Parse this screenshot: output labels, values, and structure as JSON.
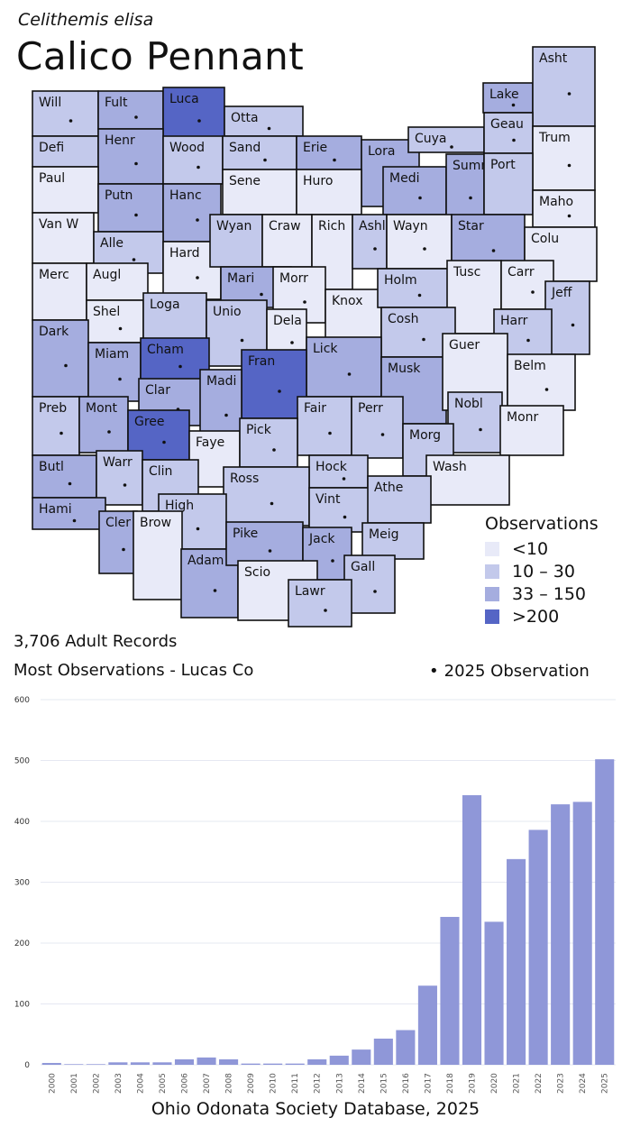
{
  "header": {
    "scientific_name": "Celithemis elisa",
    "common_name": "Calico Pennant"
  },
  "legend": {
    "title": "Observations",
    "items": [
      {
        "label": "<10",
        "color": "#e8eaf8"
      },
      {
        "label": "10 – 30",
        "color": "#c3c9eb"
      },
      {
        "label": "33 – 150",
        "color": "#a5addf"
      },
      {
        "label": ">200",
        "color": "#5565c5"
      }
    ],
    "observation_2025_label": "2025  Observation"
  },
  "summary": {
    "records": "3,706 Adult Records",
    "most": "Most Observations - Lucas Co"
  },
  "map": {
    "counties": [
      {
        "name": "Will",
        "level": 1,
        "obs2025": true
      },
      {
        "name": "Fult",
        "level": 2,
        "obs2025": true
      },
      {
        "name": "Luca",
        "level": 3,
        "obs2025": true
      },
      {
        "name": "Otta",
        "level": 1,
        "obs2025": true
      },
      {
        "name": "Lake",
        "level": 2,
        "obs2025": true
      },
      {
        "name": "Asht",
        "level": 1,
        "obs2025": true
      },
      {
        "name": "Defi",
        "level": 1,
        "obs2025": false
      },
      {
        "name": "Henr",
        "level": 2,
        "obs2025": true
      },
      {
        "name": "Wood",
        "level": 1,
        "obs2025": true
      },
      {
        "name": "Sand",
        "level": 1,
        "obs2025": true
      },
      {
        "name": "Erie",
        "level": 2,
        "obs2025": true
      },
      {
        "name": "Lora",
        "level": 2,
        "obs2025": true
      },
      {
        "name": "Cuya",
        "level": 1,
        "obs2025": true
      },
      {
        "name": "Geau",
        "level": 1,
        "obs2025": true
      },
      {
        "name": "Trum",
        "level": 0,
        "obs2025": true
      },
      {
        "name": "Paul",
        "level": 0,
        "obs2025": false
      },
      {
        "name": "Putn",
        "level": 2,
        "obs2025": true
      },
      {
        "name": "Hanc",
        "level": 2,
        "obs2025": true
      },
      {
        "name": "Sene",
        "level": 0,
        "obs2025": false
      },
      {
        "name": "Huro",
        "level": 0,
        "obs2025": false
      },
      {
        "name": "Medi",
        "level": 2,
        "obs2025": true
      },
      {
        "name": "Summ",
        "level": 2,
        "obs2025": true
      },
      {
        "name": "Port",
        "level": 1,
        "obs2025": false
      },
      {
        "name": "Maho",
        "level": 0,
        "obs2025": true
      },
      {
        "name": "Van W",
        "level": 0,
        "obs2025": false
      },
      {
        "name": "Alle",
        "level": 1,
        "obs2025": true
      },
      {
        "name": "Hard",
        "level": 0,
        "obs2025": true
      },
      {
        "name": "Wyan",
        "level": 1,
        "obs2025": false
      },
      {
        "name": "Craw",
        "level": 0,
        "obs2025": false
      },
      {
        "name": "Rich",
        "level": 0,
        "obs2025": false
      },
      {
        "name": "Ashl",
        "level": 1,
        "obs2025": true
      },
      {
        "name": "Wayn",
        "level": 0,
        "obs2025": true
      },
      {
        "name": "Star",
        "level": 2,
        "obs2025": true
      },
      {
        "name": "Colu",
        "level": 0,
        "obs2025": false
      },
      {
        "name": "Merc",
        "level": 0,
        "obs2025": false
      },
      {
        "name": "Augl",
        "level": 0,
        "obs2025": false
      },
      {
        "name": "Mari",
        "level": 2,
        "obs2025": true
      },
      {
        "name": "Morr",
        "level": 0,
        "obs2025": true
      },
      {
        "name": "Knox",
        "level": 0,
        "obs2025": false
      },
      {
        "name": "Holm",
        "level": 1,
        "obs2025": true
      },
      {
        "name": "Tusc",
        "level": 0,
        "obs2025": false
      },
      {
        "name": "Carr",
        "level": 0,
        "obs2025": true
      },
      {
        "name": "Jeff",
        "level": 1,
        "obs2025": true
      },
      {
        "name": "Shel",
        "level": 0,
        "obs2025": true
      },
      {
        "name": "Loga",
        "level": 1,
        "obs2025": false
      },
      {
        "name": "Unio",
        "level": 1,
        "obs2025": true
      },
      {
        "name": "Dela",
        "level": 0,
        "obs2025": true
      },
      {
        "name": "Cosh",
        "level": 1,
        "obs2025": true
      },
      {
        "name": "Harr",
        "level": 1,
        "obs2025": true
      },
      {
        "name": "Dark",
        "level": 2,
        "obs2025": true
      },
      {
        "name": "Miam",
        "level": 2,
        "obs2025": true
      },
      {
        "name": "Cham",
        "level": 3,
        "obs2025": true
      },
      {
        "name": "Lick",
        "level": 2,
        "obs2025": true
      },
      {
        "name": "Musk",
        "level": 2,
        "obs2025": false
      },
      {
        "name": "Guer",
        "level": 0,
        "obs2025": false
      },
      {
        "name": "Belm",
        "level": 0,
        "obs2025": true
      },
      {
        "name": "Clar",
        "level": 2,
        "obs2025": true
      },
      {
        "name": "Fran",
        "level": 3,
        "obs2025": true
      },
      {
        "name": "Madi",
        "level": 2,
        "obs2025": true
      },
      {
        "name": "Preb",
        "level": 1,
        "obs2025": true
      },
      {
        "name": "Mont",
        "level": 2,
        "obs2025": true
      },
      {
        "name": "Gree",
        "level": 3,
        "obs2025": true
      },
      {
        "name": "Fair",
        "level": 1,
        "obs2025": true
      },
      {
        "name": "Perr",
        "level": 1,
        "obs2025": true
      },
      {
        "name": "Nobl",
        "level": 1,
        "obs2025": true
      },
      {
        "name": "Monr",
        "level": 0,
        "obs2025": false
      },
      {
        "name": "Faye",
        "level": 0,
        "obs2025": false
      },
      {
        "name": "Pick",
        "level": 1,
        "obs2025": true
      },
      {
        "name": "Morg",
        "level": 1,
        "obs2025": true
      },
      {
        "name": "Butl",
        "level": 2,
        "obs2025": true
      },
      {
        "name": "Warr",
        "level": 1,
        "obs2025": true
      },
      {
        "name": "Clin",
        "level": 1,
        "obs2025": false
      },
      {
        "name": "Hock",
        "level": 1,
        "obs2025": true
      },
      {
        "name": "Wash",
        "level": 0,
        "obs2025": false
      },
      {
        "name": "Ross",
        "level": 1,
        "obs2025": true
      },
      {
        "name": "Vint",
        "level": 1,
        "obs2025": true
      },
      {
        "name": "Athe",
        "level": 1,
        "obs2025": false
      },
      {
        "name": "Hami",
        "level": 2,
        "obs2025": true
      },
      {
        "name": "High",
        "level": 1,
        "obs2025": true
      },
      {
        "name": "Cler",
        "level": 2,
        "obs2025": true
      },
      {
        "name": "Brow",
        "level": 0,
        "obs2025": false
      },
      {
        "name": "Adam",
        "level": 2,
        "obs2025": true
      },
      {
        "name": "Pike",
        "level": 2,
        "obs2025": true
      },
      {
        "name": "Jack",
        "level": 2,
        "obs2025": true
      },
      {
        "name": "Meig",
        "level": 1,
        "obs2025": false
      },
      {
        "name": "Scio",
        "level": 0,
        "obs2025": false
      },
      {
        "name": "Gall",
        "level": 1,
        "obs2025": true
      },
      {
        "name": "Lawr",
        "level": 1,
        "obs2025": true
      }
    ]
  },
  "chart_data": {
    "type": "bar",
    "categories": [
      "2000",
      "2001",
      "2002",
      "2003",
      "2004",
      "2005",
      "2006",
      "2007",
      "2008",
      "2009",
      "2010",
      "2011",
      "2012",
      "2013",
      "2014",
      "2015",
      "2016",
      "2017",
      "2018",
      "2019",
      "2020",
      "2021",
      "2022",
      "2023",
      "2024",
      "2025"
    ],
    "values": [
      3,
      1,
      1,
      4,
      4,
      4,
      9,
      12,
      9,
      2,
      2,
      2,
      9,
      15,
      25,
      43,
      57,
      130,
      243,
      443,
      235,
      338,
      386,
      428,
      432,
      502
    ],
    "ylim": [
      0,
      600
    ],
    "yticks": [
      0,
      100,
      200,
      300,
      400,
      500,
      600
    ],
    "grid": true,
    "bar_color": "#8f97d8"
  },
  "footer": "Ohio Odonata Society Database, 2025"
}
